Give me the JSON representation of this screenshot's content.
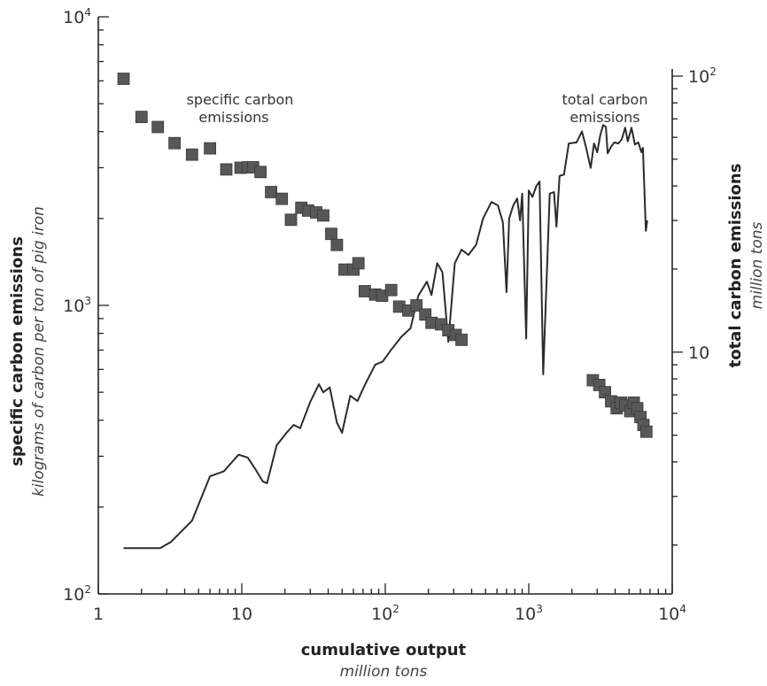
{
  "chart_data": {
    "type": "scatter+line",
    "x_scale": "log",
    "xlim": [
      1,
      10000
    ],
    "x_ticks": [
      {
        "base": "1",
        "exp": ""
      },
      {
        "base": "10",
        "exp": ""
      },
      {
        "base": "10",
        "exp": "2"
      },
      {
        "base": "10",
        "exp": "3"
      },
      {
        "base": "10",
        "exp": "4"
      }
    ],
    "xlabel": "cumulative output",
    "xlabel_unit": "million tons",
    "left_axis": {
      "scale": "log",
      "ylim": [
        100,
        10000
      ],
      "title": "specific carbon emissions",
      "unit": "kilograms of carbon per ton of pig iron",
      "ticks": [
        {
          "value": 10000,
          "base": "10",
          "exp": "4"
        },
        {
          "value": 1000,
          "base": "10",
          "exp": "3"
        },
        {
          "value": 100,
          "base": "10",
          "exp": "2"
        }
      ]
    },
    "right_axis": {
      "scale": "log",
      "ylim": [
        1.33,
        100
      ],
      "title": "total carbon emissions",
      "unit": "million tons",
      "ticks": [
        {
          "value": 100,
          "base": "10",
          "exp": "2"
        },
        {
          "value": 10,
          "base": "10",
          "exp": ""
        }
      ]
    },
    "series": [
      {
        "name": "specific carbon emissions",
        "kind": "markers",
        "axis": "left",
        "color": "#575757",
        "points": [
          [
            1.5,
            6100
          ],
          [
            2.0,
            4500
          ],
          [
            2.6,
            4150
          ],
          [
            3.4,
            3650
          ],
          [
            4.5,
            3330
          ],
          [
            6.0,
            3500
          ],
          [
            7.8,
            2960
          ],
          [
            9.8,
            3000
          ],
          [
            11.0,
            3010
          ],
          [
            12.0,
            3010
          ],
          [
            13.5,
            2900
          ],
          [
            16.0,
            2470
          ],
          [
            19.0,
            2340
          ],
          [
            22.0,
            1980
          ],
          [
            26.0,
            2180
          ],
          [
            29.0,
            2130
          ],
          [
            33.0,
            2100
          ],
          [
            37.0,
            2050
          ],
          [
            42.0,
            1770
          ],
          [
            46.0,
            1620
          ],
          [
            52.0,
            1330
          ],
          [
            60.0,
            1330
          ],
          [
            65.0,
            1400
          ],
          [
            72.0,
            1120
          ],
          [
            85.0,
            1090
          ],
          [
            95.0,
            1080
          ],
          [
            110.0,
            1130
          ],
          [
            125.0,
            990
          ],
          [
            145.0,
            960
          ],
          [
            165.0,
            1000
          ],
          [
            190.0,
            930
          ],
          [
            210.0,
            870
          ],
          [
            245.0,
            860
          ],
          [
            275.0,
            820
          ],
          [
            310.0,
            790
          ],
          [
            340.0,
            760
          ],
          [
            2800,
            550
          ],
          [
            3100,
            530
          ],
          [
            3400,
            500
          ],
          [
            3750,
            465
          ],
          [
            4100,
            440
          ],
          [
            4400,
            460
          ],
          [
            4700,
            450
          ],
          [
            5100,
            430
          ],
          [
            5400,
            460
          ],
          [
            5700,
            440
          ],
          [
            6000,
            410
          ],
          [
            6300,
            385
          ],
          [
            6600,
            365
          ]
        ]
      },
      {
        "name": "total carbon emissions",
        "kind": "line",
        "axis": "right",
        "color": "#2b2b2b",
        "points": [
          [
            1.5,
            1.95
          ],
          [
            2.7,
            1.95
          ],
          [
            3.2,
            2.05
          ],
          [
            4.5,
            2.45
          ],
          [
            6.0,
            3.55
          ],
          [
            7.5,
            3.7
          ],
          [
            9.5,
            4.25
          ],
          [
            11.0,
            4.15
          ],
          [
            12.5,
            3.75
          ],
          [
            14.0,
            3.4
          ],
          [
            15.0,
            3.35
          ],
          [
            17.5,
            4.6
          ],
          [
            20.5,
            5.1
          ],
          [
            23.0,
            5.45
          ],
          [
            25.5,
            5.3
          ],
          [
            30.0,
            6.6
          ],
          [
            34.5,
            7.65
          ],
          [
            37.0,
            7.15
          ],
          [
            41.0,
            7.45
          ],
          [
            46.0,
            5.55
          ],
          [
            50.0,
            5.1
          ],
          [
            57.0,
            6.95
          ],
          [
            64.0,
            6.65
          ],
          [
            72.0,
            7.6
          ],
          [
            85.0,
            9.0
          ],
          [
            96.0,
            9.25
          ],
          [
            110.0,
            10.2
          ],
          [
            130.0,
            11.4
          ],
          [
            150.0,
            12.2
          ],
          [
            170.0,
            16.0
          ],
          [
            195.0,
            18.0
          ],
          [
            210.0,
            16.1
          ],
          [
            230.0,
            21.0
          ],
          [
            250.0,
            19.5
          ],
          [
            275.0,
            10.9
          ],
          [
            305.0,
            21.0
          ],
          [
            340.0,
            23.5
          ],
          [
            380.0,
            22.5
          ],
          [
            430.0,
            24.5
          ],
          [
            480.0,
            30.5
          ],
          [
            550.0,
            35.0
          ],
          [
            610.0,
            34.0
          ],
          [
            660.0,
            29.5
          ],
          [
            700.0,
            16.5
          ],
          [
            730.0,
            30.5
          ],
          [
            780.0,
            34.0
          ],
          [
            830.0,
            36.0
          ],
          [
            870.0,
            30.0
          ],
          [
            900.0,
            37.5
          ],
          [
            960.0,
            11.2
          ],
          [
            1000.0,
            38.5
          ],
          [
            1060.0,
            36.5
          ],
          [
            1130.0,
            40.0
          ],
          [
            1190.0,
            41.5
          ],
          [
            1260.0,
            8.3
          ],
          [
            1400.0,
            37.5
          ],
          [
            1500.0,
            38.0
          ],
          [
            1560.0,
            28.5
          ],
          [
            1640.0,
            43.5
          ],
          [
            1760.0,
            44.0
          ],
          [
            1900.0,
            57.0
          ],
          [
            2150.0,
            57.5
          ],
          [
            2350.0,
            63.0
          ],
          [
            2500.0,
            55.5
          ],
          [
            2700.0,
            46.5
          ],
          [
            2850.0,
            57.0
          ],
          [
            3000.0,
            53.0
          ],
          [
            3150.0,
            61.0
          ],
          [
            3300.0,
            66.5
          ],
          [
            3450.0,
            65.5
          ],
          [
            3550.0,
            52.5
          ],
          [
            3750.0,
            55.5
          ],
          [
            3950.0,
            57.5
          ],
          [
            4200.0,
            57.0
          ],
          [
            4450.0,
            59.0
          ],
          [
            4700.0,
            65.0
          ],
          [
            4900.0,
            58.0
          ],
          [
            5200.0,
            65.0
          ],
          [
            5500.0,
            56.5
          ],
          [
            5800.0,
            57.5
          ],
          [
            6100.0,
            53.0
          ],
          [
            6250.0,
            55.0
          ],
          [
            6400.0,
            38.5
          ],
          [
            6550.0,
            27.5
          ],
          [
            6700.0,
            30.0
          ]
        ]
      }
    ],
    "annotations": [
      {
        "series": "specific carbon emissions",
        "lines": [
          "specific carbon",
          "emissions"
        ]
      },
      {
        "series": "total carbon emissions",
        "lines": [
          "total carbon",
          "emissions"
        ]
      }
    ]
  }
}
